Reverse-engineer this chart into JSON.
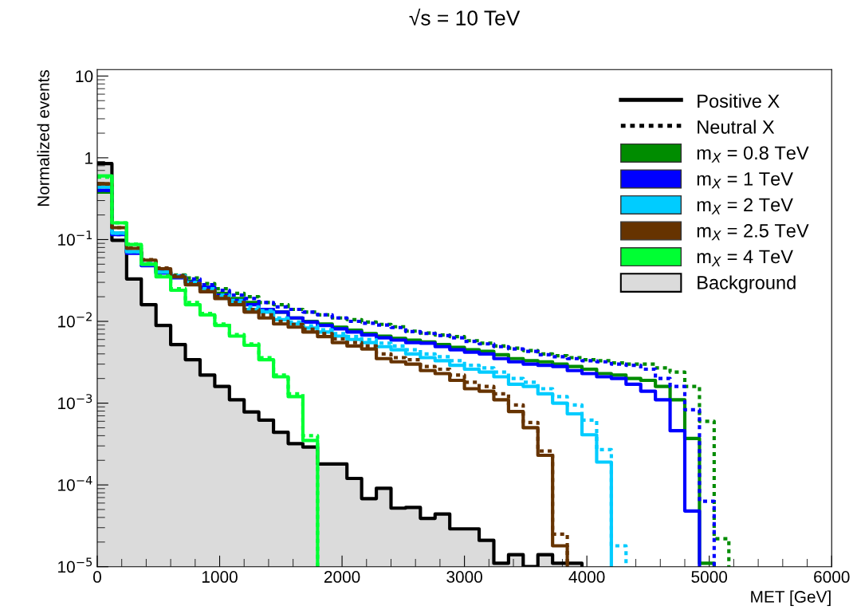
{
  "chart_data": {
    "type": "step",
    "title": "√s = 10 TeV",
    "xlabel": "MET [GeV]",
    "ylabel": "Normalized events",
    "x": [
      0,
      120,
      240,
      360,
      480,
      600,
      720,
      840,
      960,
      1080,
      1200,
      1320,
      1440,
      1560,
      1680,
      1800,
      1920,
      2040,
      2160,
      2280,
      2400,
      2520,
      2640,
      2760,
      2880,
      3000,
      3120,
      3240,
      3360,
      3480,
      3600,
      3720,
      3840,
      3960,
      4080,
      4200,
      4320,
      4440,
      4560,
      4680,
      4800,
      4920,
      5040,
      5160
    ],
    "xlim": [
      0,
      6000
    ],
    "xticks": [
      0,
      1000,
      2000,
      3000,
      4000,
      5000,
      6000
    ],
    "log": "y",
    "ylim": [
      1e-05,
      12
    ],
    "yticks": [
      {
        "value": 1e-05,
        "label": "10$^{−5}$"
      },
      {
        "value": 0.0001,
        "label": "10$^{−4}$"
      },
      {
        "value": 0.001,
        "label": "10$^{−3}$"
      },
      {
        "value": 0.01,
        "label": "10$^{−2}$"
      },
      {
        "value": 0.1,
        "label": "10$^{−1}$"
      },
      1,
      10
    ],
    "grid": false,
    "legend": "top right",
    "annotations": [
      "Positive X",
      "Neutral X"
    ],
    "series": [
      {
        "name": "Background",
        "type": "area",
        "color": "#000000",
        "line_style": "solid",
        "values": [
          0.85,
          0.098,
          0.033,
          0.016,
          0.0089,
          0.0052,
          0.0034,
          0.0022,
          0.0016,
          0.0011,
          0.00078,
          0.00062,
          0.00044,
          0.00032,
          0.00029,
          0.00018,
          0.00018,
          0.00012,
          6.8e-05,
          9.1e-05,
          5.2e-05,
          5.3e-05,
          3.9e-05,
          4.4e-05,
          2.9e-05,
          2.9e-05,
          2.1e-05,
          1.1e-05,
          1.4e-05,
          1e-05,
          1.4e-05,
          1.1e-05,
          1.1e-05,
          1e-05,
          null,
          null,
          null,
          null,
          null,
          null,
          null,
          null,
          null,
          null
        ]
      },
      {
        "name": "m$_{X}$ = 0.8 TeV",
        "type": "step",
        "color": "#008c00",
        "line_style": "solid",
        "values": [
          0.38,
          0.12,
          0.069,
          0.049,
          0.04,
          0.035,
          0.031,
          0.026,
          0.022,
          0.019,
          0.017,
          0.014,
          0.013,
          0.011,
          0.01,
          0.0093,
          0.0085,
          0.0078,
          0.0071,
          0.0066,
          0.0062,
          0.0059,
          0.0056,
          0.0052,
          0.0048,
          0.0045,
          0.0043,
          0.0039,
          0.0035,
          0.0033,
          0.0032,
          0.003,
          0.0028,
          0.0026,
          0.0023,
          0.0022,
          0.002,
          0.0019,
          0.0016,
          0.0011,
          0.00037,
          1.1e-05,
          1e-05,
          null
        ]
      },
      {
        "type": "step",
        "color": "#008c00",
        "line_style": "dotted",
        "values": [
          0.38,
          0.12,
          0.07,
          0.05,
          0.041,
          0.037,
          0.034,
          0.029,
          0.025,
          0.022,
          0.02,
          0.017,
          0.016,
          0.014,
          0.013,
          0.012,
          0.011,
          0.0105,
          0.0098,
          0.0092,
          0.0086,
          0.0076,
          0.0072,
          0.0068,
          0.0065,
          0.0058,
          0.0054,
          0.005,
          0.0047,
          0.0044,
          0.004,
          0.0038,
          0.0036,
          0.0034,
          0.0033,
          0.0031,
          0.003,
          0.003,
          0.0027,
          0.0024,
          0.0016,
          0.0006,
          2.2e-05,
          1e-05
        ]
      },
      {
        "name": "m$_{X}$ = 1 TeV",
        "type": "step",
        "color": "#0000ff",
        "line_style": "solid",
        "values": [
          0.4,
          0.115,
          0.068,
          0.048,
          0.039,
          0.034,
          0.03,
          0.026,
          0.021,
          0.018,
          0.016,
          0.014,
          0.013,
          0.011,
          0.0098,
          0.0089,
          0.0081,
          0.0074,
          0.0068,
          0.0063,
          0.0059,
          0.0055,
          0.0054,
          0.0049,
          0.0045,
          0.0042,
          0.004,
          0.0035,
          0.0032,
          0.003,
          0.0029,
          0.0028,
          0.0025,
          0.0023,
          0.0021,
          0.002,
          0.0017,
          0.0014,
          0.0011,
          0.00046,
          4.8e-05,
          1e-05,
          null,
          null
        ]
      },
      {
        "type": "step",
        "color": "#0000ff",
        "line_style": "dotted",
        "values": [
          0.4,
          0.115,
          0.069,
          0.049,
          0.04,
          0.036,
          0.033,
          0.028,
          0.024,
          0.021,
          0.019,
          0.017,
          0.015,
          0.014,
          0.013,
          0.012,
          0.011,
          0.01,
          0.0095,
          0.009,
          0.0084,
          0.0075,
          0.0071,
          0.0067,
          0.0063,
          0.0057,
          0.0053,
          0.0049,
          0.0046,
          0.0043,
          0.0039,
          0.0037,
          0.0035,
          0.0033,
          0.0032,
          0.003,
          0.0029,
          0.0026,
          0.002,
          0.0016,
          0.00083,
          6.3e-05,
          1e-05,
          null
        ]
      },
      {
        "name": "m$_{X}$ = 2 TeV",
        "type": "step",
        "color": "#00ccff",
        "line_style": "solid",
        "values": [
          0.44,
          0.12,
          0.071,
          0.05,
          0.04,
          0.035,
          0.029,
          0.024,
          0.02,
          0.017,
          0.014,
          0.013,
          0.0105,
          0.0093,
          0.0083,
          0.0074,
          0.0066,
          0.006,
          0.0055,
          0.0049,
          0.0045,
          0.004,
          0.0036,
          0.0033,
          0.0029,
          0.0026,
          0.0024,
          0.0021,
          0.0017,
          0.0016,
          0.0013,
          0.001,
          0.00074,
          0.00041,
          0.00019,
          1e-05,
          null,
          null,
          null,
          null,
          null,
          null,
          null,
          null
        ]
      },
      {
        "type": "step",
        "color": "#00ccff",
        "line_style": "dotted",
        "values": [
          0.44,
          0.12,
          0.071,
          0.051,
          0.041,
          0.036,
          0.03,
          0.025,
          0.021,
          0.018,
          0.015,
          0.0135,
          0.011,
          0.0098,
          0.0088,
          0.0079,
          0.0071,
          0.0065,
          0.006,
          0.0054,
          0.005,
          0.0045,
          0.004,
          0.0037,
          0.0033,
          0.0029,
          0.0027,
          0.0024,
          0.002,
          0.0018,
          0.0015,
          0.0012,
          0.00095,
          0.00062,
          0.00027,
          1.8e-05,
          1e-05,
          null,
          null,
          null,
          null,
          null,
          null,
          null
        ]
      },
      {
        "name": "m$_{X}$ = 2.5 TeV",
        "type": "step",
        "color": "#663300",
        "line_style": "solid",
        "values": [
          0.48,
          0.14,
          0.078,
          0.056,
          0.044,
          0.035,
          0.028,
          0.023,
          0.019,
          0.016,
          0.013,
          0.011,
          0.0093,
          0.0085,
          0.0074,
          0.0065,
          0.0055,
          0.005,
          0.0046,
          0.0035,
          0.0032,
          0.003,
          0.0025,
          0.0023,
          0.0019,
          0.0015,
          0.0014,
          0.0011,
          0.00079,
          0.0005,
          0.00023,
          1.8e-05,
          1e-05,
          null,
          null,
          null,
          null,
          null,
          null,
          null,
          null,
          null,
          null,
          null
        ]
      },
      {
        "type": "step",
        "color": "#663300",
        "line_style": "dotted",
        "values": [
          0.48,
          0.14,
          0.079,
          0.057,
          0.045,
          0.036,
          0.029,
          0.024,
          0.02,
          0.017,
          0.014,
          0.012,
          0.01,
          0.0092,
          0.008,
          0.0071,
          0.0061,
          0.0055,
          0.005,
          0.004,
          0.0036,
          0.0034,
          0.0028,
          0.0026,
          0.0022,
          0.0018,
          0.0016,
          0.0013,
          0.00095,
          0.00058,
          0.00026,
          2.5e-05,
          1e-05,
          null,
          null,
          null,
          null,
          null,
          null,
          null,
          null,
          null,
          null,
          null
        ]
      },
      {
        "name": "m$_{X}$ = 4 TeV",
        "type": "step",
        "color": "#00ff33",
        "line_style": "solid",
        "values": [
          0.6,
          0.16,
          0.087,
          0.05,
          0.035,
          0.024,
          0.016,
          0.012,
          0.0089,
          0.0066,
          0.0051,
          0.0034,
          0.0021,
          0.0012,
          0.00035,
          1e-05,
          null,
          null,
          null,
          null,
          null,
          null,
          null,
          null,
          null,
          null,
          null,
          null,
          null,
          null,
          null,
          null,
          null,
          null,
          null,
          null,
          null,
          null,
          null,
          null,
          null,
          null,
          null,
          null
        ]
      },
      {
        "type": "step",
        "color": "#00ff33",
        "line_style": "dotted",
        "values": [
          0.58,
          0.16,
          0.088,
          0.051,
          0.036,
          0.025,
          0.017,
          0.0125,
          0.0093,
          0.0069,
          0.0053,
          0.0036,
          0.0022,
          0.0013,
          0.0004,
          1e-05,
          null,
          null,
          null,
          null,
          null,
          null,
          null,
          null,
          null,
          null,
          null,
          null,
          null,
          null,
          null,
          null,
          null,
          null,
          null,
          null,
          null,
          null,
          null,
          null,
          null,
          null,
          null,
          null
        ]
      }
    ]
  }
}
